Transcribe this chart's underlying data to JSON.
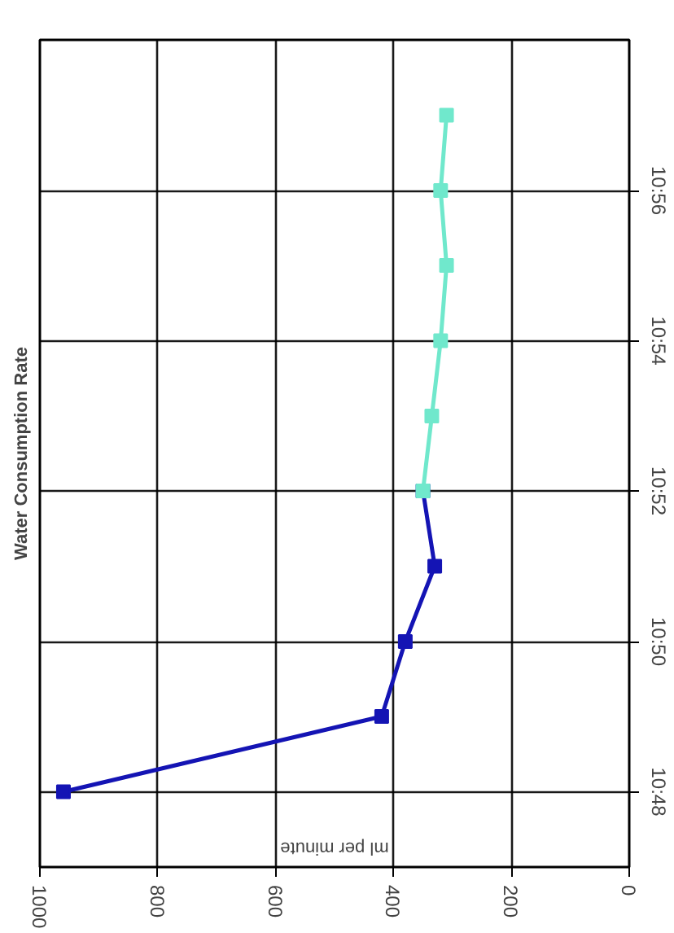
{
  "chart_data": {
    "type": "line",
    "title": "Water Consumption Rate",
    "xlabel": "ml per minute",
    "xlim": [
      1000,
      0
    ],
    "xticks": [
      0,
      200,
      400,
      600,
      800,
      1000
    ],
    "ylim": [
      10.7833,
      10.9667
    ],
    "yticks": [
      {
        "value": 10.8,
        "label": "10:48"
      },
      {
        "value": 10.8333,
        "label": "10:50"
      },
      {
        "value": 10.8667,
        "label": "10:52"
      },
      {
        "value": 10.9,
        "label": "10:54"
      },
      {
        "value": 10.9333,
        "label": "10:56"
      }
    ],
    "series": [
      {
        "color": "#1414b4",
        "x": [
          960,
          420,
          380,
          330,
          350
        ],
        "values": [
          10.8,
          10.8167,
          10.8333,
          10.85,
          10.8667
        ]
      },
      {
        "color": "#70e8cc",
        "x": [
          350,
          335,
          320,
          310,
          320,
          310
        ],
        "values": [
          10.8667,
          10.8833,
          10.9,
          10.9167,
          10.9333,
          10.95
        ]
      }
    ],
    "marker": "square",
    "grid": true
  }
}
